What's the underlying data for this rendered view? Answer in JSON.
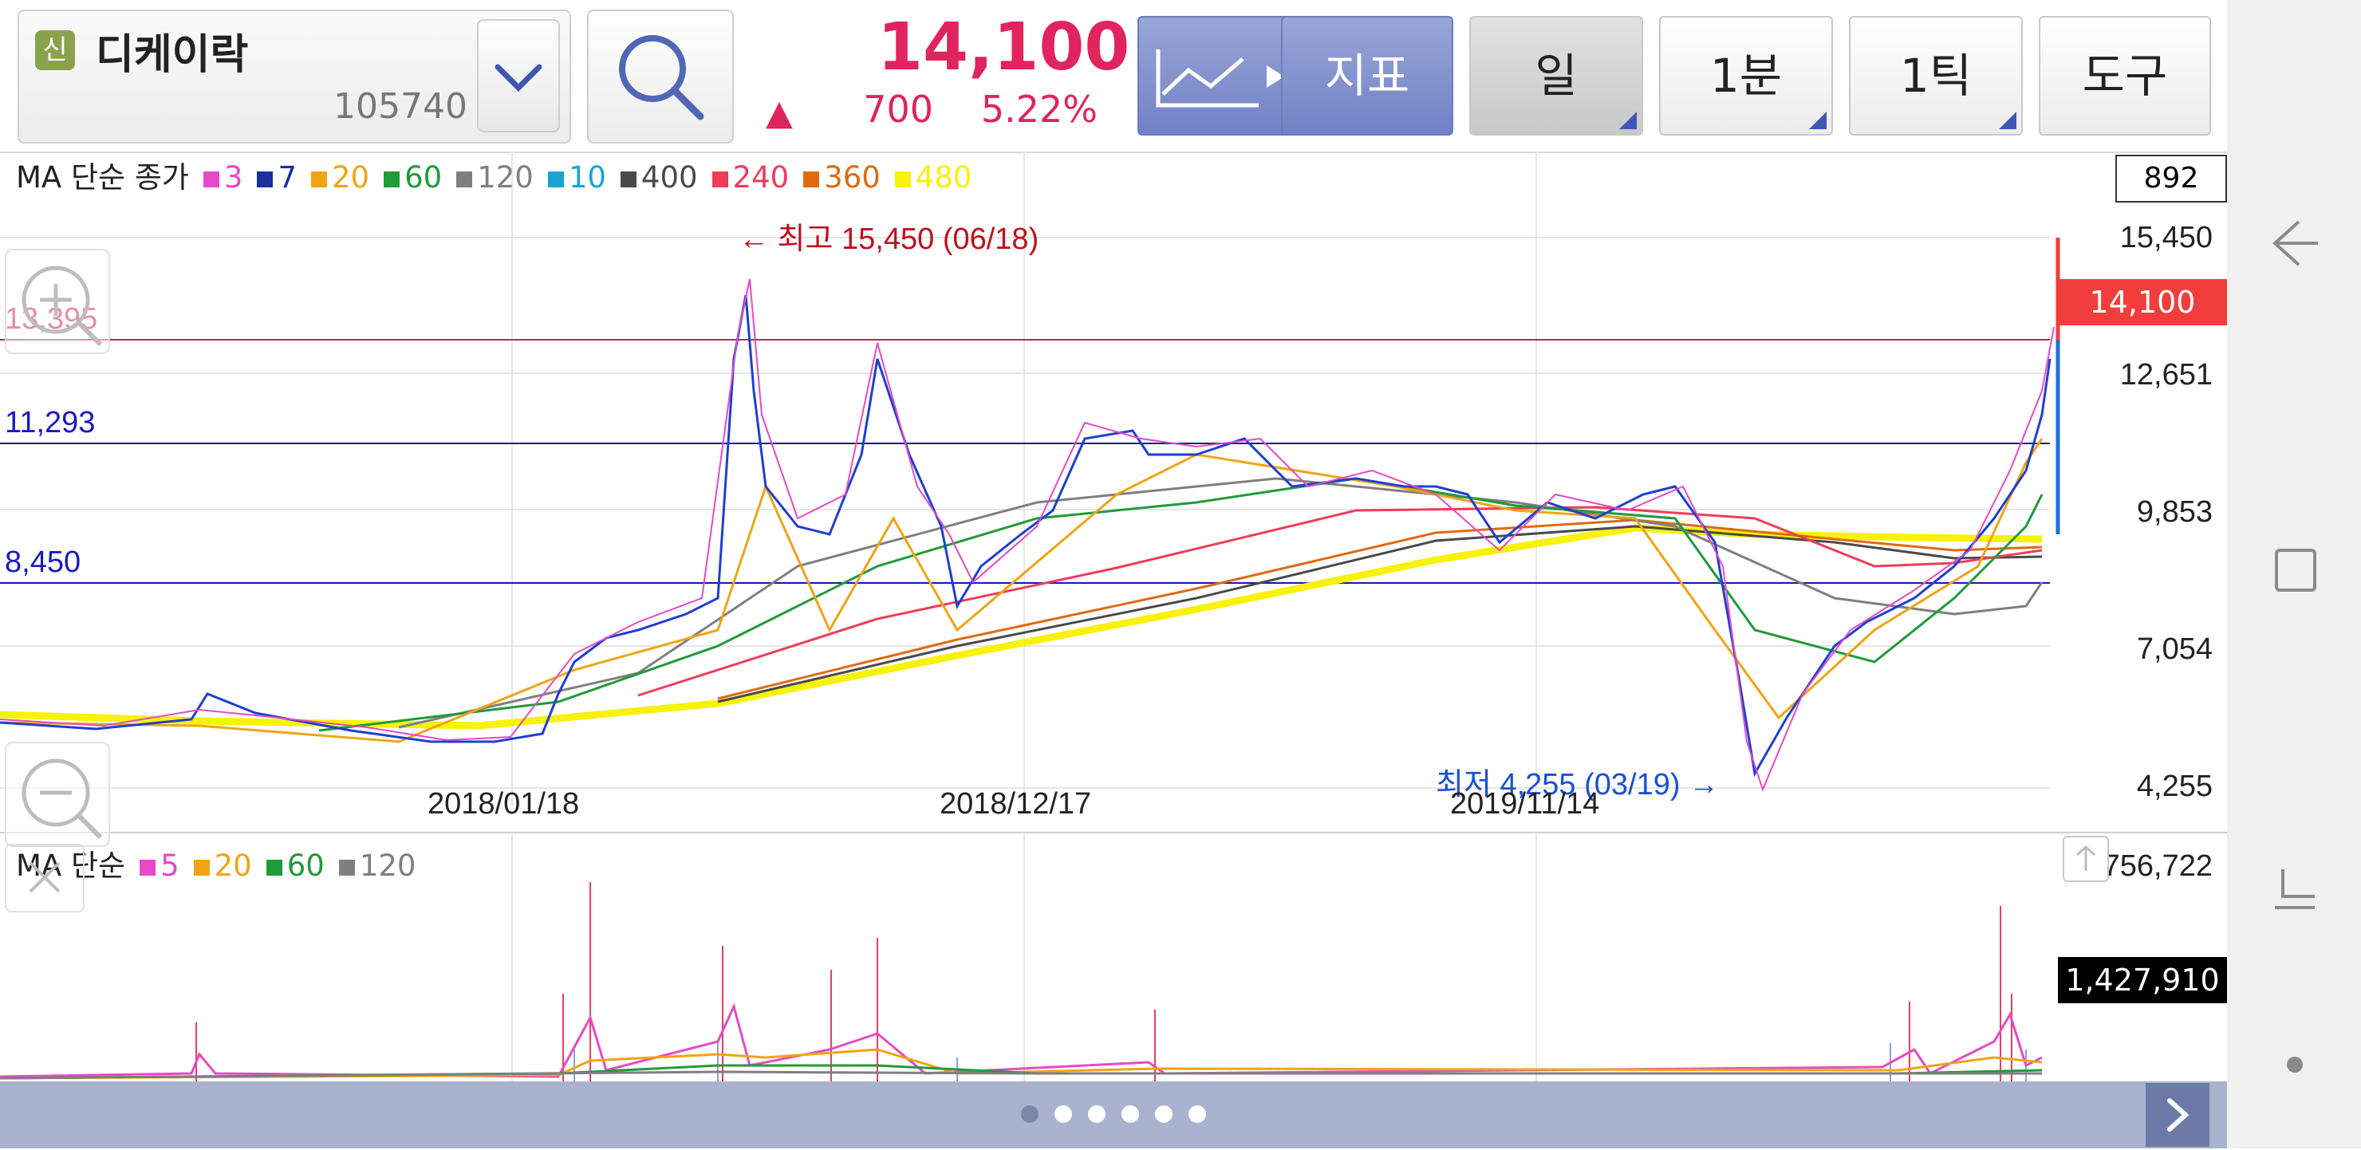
{
  "header": {
    "badge": "신",
    "stock_name": "디케이락",
    "stock_code": "105740",
    "price": "14,100",
    "change": "700",
    "change_pct": "5.22%",
    "buttons": {
      "indicator": "지표",
      "period": "일",
      "minute": "1분",
      "tick": "1틱",
      "tools": "도구"
    }
  },
  "ma_legend": {
    "title": "MA 단순 종가",
    "items": [
      {
        "label": "3",
        "color": "#e64ac6"
      },
      {
        "label": "7",
        "color": "#1a2fa0"
      },
      {
        "label": "20",
        "color": "#f0a414"
      },
      {
        "label": "60",
        "color": "#1f9b3a"
      },
      {
        "label": "120",
        "color": "#7f7f7f"
      },
      {
        "label": "10",
        "color": "#1aa4d4"
      },
      {
        "label": "400",
        "color": "#4a4a4a"
      },
      {
        "label": "240",
        "color": "#f03c5a"
      },
      {
        "label": "360",
        "color": "#e06a10"
      },
      {
        "label": "480",
        "color": "#f7f20a"
      }
    ]
  },
  "price_axis": {
    "labels": [
      "15,450",
      "12,651",
      "9,853",
      "7,054",
      "4,255"
    ],
    "top_box": "892",
    "current_tag": "14,100"
  },
  "hlines": [
    {
      "label": "13,395",
      "color": "#e0245e"
    },
    {
      "label": "11,293",
      "color": "#1a1ac0"
    },
    {
      "label": "8,450",
      "color": "#1a1ac0"
    }
  ],
  "annotations": {
    "high": "← 최고 15,450 (06/18)",
    "low": "최저 4,255 (03/19) →"
  },
  "dates": [
    "2018/01/18",
    "2018/12/17",
    "2019/11/14"
  ],
  "volume_legend": {
    "title": "MA 단순",
    "items": [
      {
        "label": "5",
        "color": "#e64ac6"
      },
      {
        "label": "20",
        "color": "#f0a414"
      },
      {
        "label": "60",
        "color": "#1f9b3a"
      },
      {
        "label": "120",
        "color": "#7f7f7f"
      }
    ]
  },
  "volume_axis": {
    "max": "8,756,722",
    "current_tag": "1,427,910"
  },
  "pager": {
    "count": 6,
    "active": 0
  }
}
